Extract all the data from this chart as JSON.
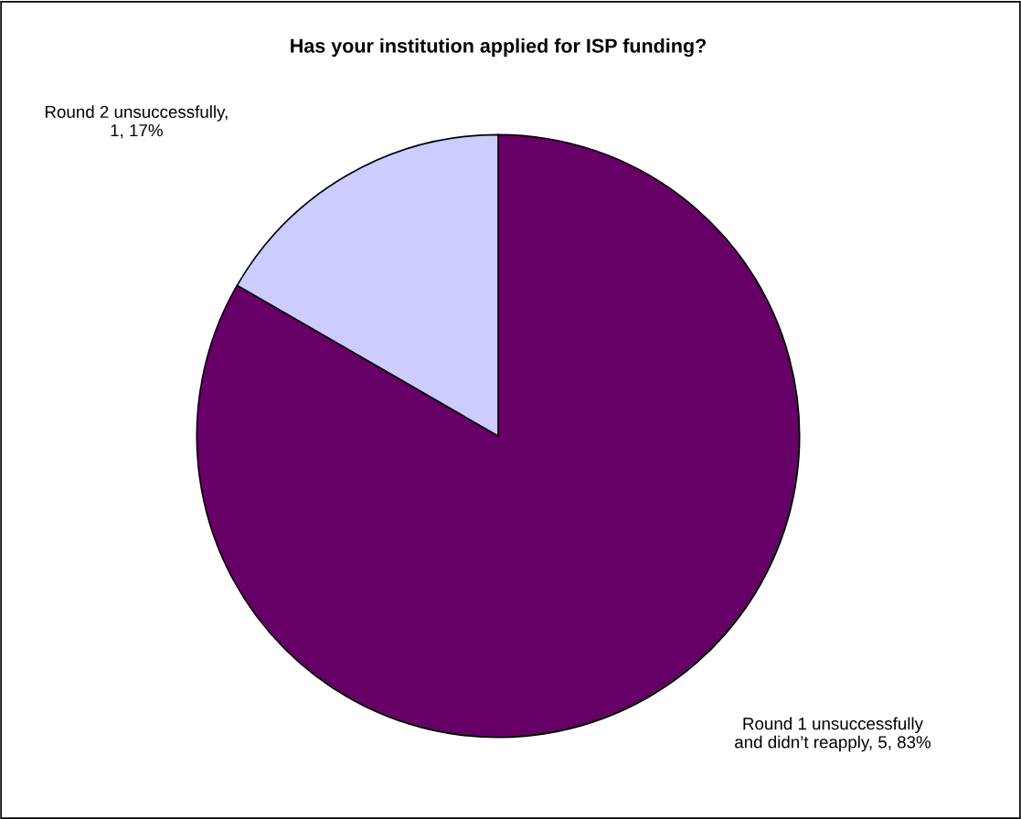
{
  "chart_data": {
    "type": "pie",
    "title": "Has your institution applied for ISP funding?",
    "categories": [
      "Round 1 unsuccessfully and didn’t reapply, 5, 83%",
      "Round 2 unsuccessfully, 1, 17%"
    ],
    "values": [
      5,
      1
    ],
    "colors": [
      "#660066",
      "#ccccff"
    ]
  }
}
